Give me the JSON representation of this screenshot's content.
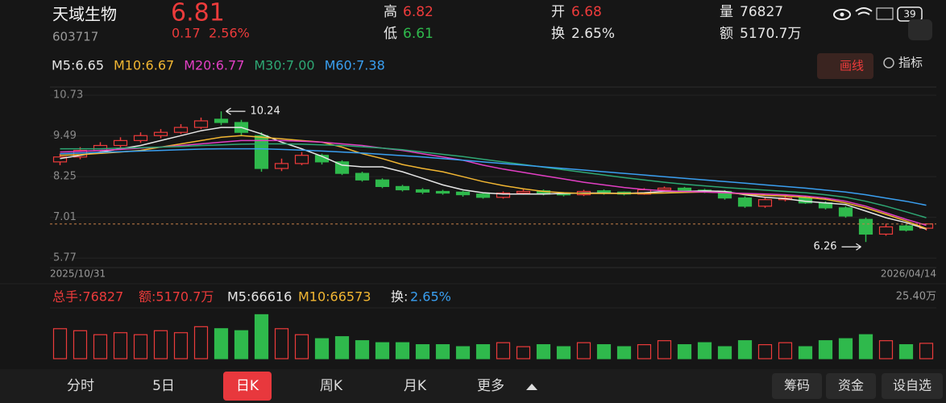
{
  "status": {
    "battery": "39"
  },
  "header": {
    "name": "天域生物",
    "code": "603717",
    "price": "6.81",
    "change": "0.17",
    "change_pct": "2.56%",
    "high_label": "高",
    "high": "6.82",
    "low_label": "低",
    "low": "6.61",
    "open_label": "开",
    "open": "6.68",
    "turnover_label": "换",
    "turnover": "2.65%",
    "volume_label": "量",
    "volume": "76827",
    "amount_label": "额",
    "amount": "5170.7万"
  },
  "toolbar": {
    "draw": "画线",
    "indicator": "指标"
  },
  "chart_data": {
    "type": "candlestick",
    "ma": [
      {
        "name": "M5:6.65",
        "color": "#e6e6e6",
        "values": [
          8.8,
          8.9,
          9.0,
          9.1,
          9.2,
          9.35,
          9.5,
          9.65,
          9.75,
          9.75,
          9.55,
          9.3,
          9.1,
          8.87,
          8.6,
          8.55,
          8.55,
          8.4,
          8.2,
          8.0,
          7.85,
          7.76,
          7.72,
          7.72,
          7.72,
          7.74,
          7.75,
          7.75,
          7.74,
          7.76,
          7.8,
          7.8,
          7.82,
          7.8,
          7.7,
          7.62,
          7.58,
          7.5,
          7.45,
          7.4,
          7.2,
          7.0,
          6.85,
          6.65
        ]
      },
      {
        "name": "M10:6.67",
        "color": "#f2b632",
        "values": [
          8.9,
          8.92,
          8.96,
          9.0,
          9.05,
          9.15,
          9.25,
          9.35,
          9.45,
          9.5,
          9.45,
          9.4,
          9.35,
          9.3,
          9.15,
          8.95,
          8.8,
          8.62,
          8.5,
          8.4,
          8.25,
          8.1,
          7.98,
          7.88,
          7.8,
          7.76,
          7.74,
          7.74,
          7.74,
          7.74,
          7.75,
          7.77,
          7.78,
          7.76,
          7.72,
          7.68,
          7.66,
          7.62,
          7.56,
          7.45,
          7.3,
          7.1,
          6.9,
          6.67
        ]
      },
      {
        "name": "M20:6.77",
        "color": "#e23fc4",
        "values": [
          9.0,
          9.02,
          9.05,
          9.08,
          9.12,
          9.15,
          9.2,
          9.25,
          9.3,
          9.35,
          9.35,
          9.35,
          9.33,
          9.3,
          9.25,
          9.2,
          9.12,
          9.05,
          8.95,
          8.85,
          8.75,
          8.6,
          8.48,
          8.38,
          8.28,
          8.18,
          8.08,
          8.0,
          7.92,
          7.86,
          7.82,
          7.8,
          7.78,
          7.76,
          7.74,
          7.72,
          7.7,
          7.66,
          7.6,
          7.5,
          7.35,
          7.15,
          6.95,
          6.77
        ]
      },
      {
        "name": "M30:7.00",
        "color": "#2ea774",
        "values": [
          9.1,
          9.1,
          9.1,
          9.12,
          9.13,
          9.15,
          9.17,
          9.2,
          9.22,
          9.24,
          9.25,
          9.25,
          9.24,
          9.22,
          9.2,
          9.16,
          9.12,
          9.07,
          9.0,
          8.93,
          8.86,
          8.78,
          8.7,
          8.62,
          8.54,
          8.46,
          8.38,
          8.3,
          8.22,
          8.15,
          8.08,
          8.02,
          7.97,
          7.92,
          7.88,
          7.84,
          7.8,
          7.76,
          7.7,
          7.62,
          7.5,
          7.35,
          7.18,
          7.0
        ]
      },
      {
        "name": "M60:7.38",
        "color": "#3a9ff0",
        "values": [
          8.95,
          8.97,
          8.99,
          9.01,
          9.03,
          9.05,
          9.07,
          9.09,
          9.1,
          9.1,
          9.1,
          9.08,
          9.06,
          9.03,
          9.0,
          8.97,
          8.93,
          8.89,
          8.85,
          8.8,
          8.75,
          8.7,
          8.65,
          8.6,
          8.55,
          8.5,
          8.45,
          8.4,
          8.35,
          8.3,
          8.25,
          8.2,
          8.15,
          8.1,
          8.05,
          8.0,
          7.95,
          7.9,
          7.84,
          7.78,
          7.7,
          7.6,
          7.5,
          7.38
        ]
      }
    ],
    "candles": [
      [
        8.7,
        8.85,
        8.95,
        8.6
      ],
      [
        8.85,
        9.05,
        9.15,
        8.78
      ],
      [
        9.05,
        9.2,
        9.3,
        8.98
      ],
      [
        9.2,
        9.35,
        9.45,
        9.12
      ],
      [
        9.35,
        9.5,
        9.6,
        9.28
      ],
      [
        9.5,
        9.6,
        9.7,
        9.42
      ],
      [
        9.6,
        9.75,
        9.85,
        9.55
      ],
      [
        9.75,
        9.95,
        10.05,
        9.7
      ],
      [
        10.0,
        9.9,
        10.24,
        9.82
      ],
      [
        9.9,
        9.6,
        9.98,
        9.52
      ],
      [
        9.5,
        8.5,
        9.6,
        8.4
      ],
      [
        8.5,
        8.65,
        8.8,
        8.42
      ],
      [
        8.65,
        8.9,
        9.0,
        8.6
      ],
      [
        8.9,
        8.7,
        8.95,
        8.62
      ],
      [
        8.7,
        8.35,
        8.75,
        8.3
      ],
      [
        8.35,
        8.15,
        8.4,
        8.1
      ],
      [
        8.15,
        7.95,
        8.2,
        7.9
      ],
      [
        7.95,
        7.85,
        8.0,
        7.8
      ],
      [
        7.85,
        7.78,
        7.9,
        7.72
      ],
      [
        7.8,
        7.75,
        7.85,
        7.7
      ],
      [
        7.78,
        7.7,
        7.82,
        7.64
      ],
      [
        7.72,
        7.62,
        7.75,
        7.58
      ],
      [
        7.62,
        7.75,
        7.8,
        7.58
      ],
      [
        7.75,
        7.8,
        7.88,
        7.7
      ],
      [
        7.82,
        7.72,
        7.86,
        7.68
      ],
      [
        7.72,
        7.7,
        7.78,
        7.65
      ],
      [
        7.7,
        7.8,
        7.85,
        7.66
      ],
      [
        7.82,
        7.75,
        7.86,
        7.7
      ],
      [
        7.78,
        7.72,
        7.8,
        7.68
      ],
      [
        7.72,
        7.85,
        7.9,
        7.7
      ],
      [
        7.85,
        7.9,
        7.95,
        7.82
      ],
      [
        7.9,
        7.82,
        7.94,
        7.78
      ],
      [
        7.84,
        7.8,
        7.88,
        7.75
      ],
      [
        7.8,
        7.6,
        7.84,
        7.55
      ],
      [
        7.6,
        7.35,
        7.65,
        7.3
      ],
      [
        7.35,
        7.55,
        7.6,
        7.3
      ],
      [
        7.55,
        7.6,
        7.65,
        7.5
      ],
      [
        7.6,
        7.45,
        7.64,
        7.42
      ],
      [
        7.45,
        7.3,
        7.5,
        7.25
      ],
      [
        7.3,
        7.05,
        7.35,
        7.0
      ],
      [
        6.95,
        6.5,
        7.0,
        6.26
      ],
      [
        6.5,
        6.72,
        6.82,
        6.45
      ],
      [
        6.75,
        6.62,
        6.8,
        6.58
      ],
      [
        6.68,
        6.81,
        6.82,
        6.61
      ]
    ],
    "ylim": [
      5.48,
      10.98
    ],
    "yticks": [
      10.73,
      9.49,
      8.25,
      7.01,
      5.77
    ],
    "high_label": "10.24",
    "low_label": "6.26",
    "x_start": "2025/10/31",
    "x_end": "2026/04/14",
    "up_color": "#ec3b3b",
    "down_color": "#2fb94c",
    "volume": {
      "values": [
        15,
        14,
        12,
        13,
        12,
        14,
        13,
        16,
        15,
        14,
        22,
        15,
        12,
        10,
        11,
        9,
        8,
        8,
        7,
        7,
        6,
        7,
        8,
        6,
        7,
        6,
        8,
        7,
        6,
        7,
        9,
        7,
        8,
        6,
        9,
        7,
        8,
        6,
        9,
        10,
        12,
        9,
        7,
        7.68
      ],
      "ylim": [
        0,
        25.4
      ],
      "yticks": [
        {
          "value": 25.4,
          "label": "25.40万"
        }
      ],
      "total": "总手:76827",
      "amount": "额:5170.7万",
      "m5": "M5:66616",
      "m10": "M10:66573",
      "turnover_label": "换:",
      "turnover": "2.65%"
    }
  },
  "tabs": [
    "分时",
    "5日",
    "日K",
    "周K",
    "月K",
    "更多"
  ],
  "actions": [
    "筹码",
    "资金",
    "设自选"
  ]
}
